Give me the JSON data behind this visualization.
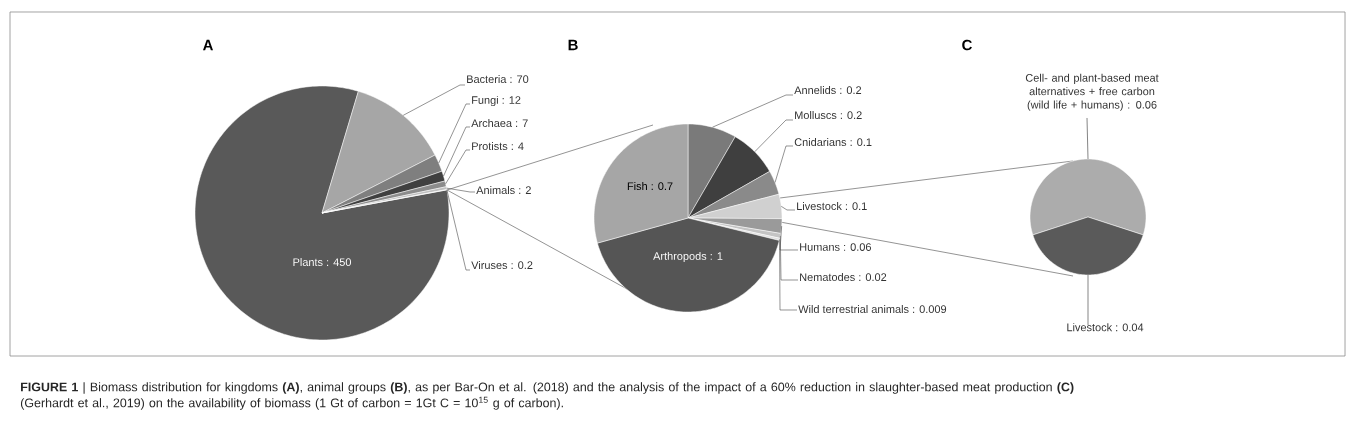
{
  "chart_data": [
    {
      "type": "pie",
      "title": "A",
      "categories": [
        "Plants",
        "Bacteria",
        "Fungi",
        "Archaea",
        "Protists",
        "Animals",
        "Viruses"
      ],
      "values": [
        450,
        70,
        12,
        7,
        4,
        2,
        0.2
      ],
      "value_labels": [
        ": 450",
        ": 70",
        ": 12",
        ": 7",
        ": 4",
        ": 2",
        ": 0.2"
      ],
      "colors": [
        "#595959",
        "#a6a6a6",
        "#7f7f7f",
        "#404040",
        "#8c8c8c",
        "#bfbfbf",
        "#d9d9d9"
      ],
      "annotations": [
        "**FIGURE 1** | Biomass distribution for kingdoms **(A)**, animal groups **(B)**, as per Bar-On et al. (2018) and the analysis of the impact of a 60% reduction in slaughter-based meat production **(C)** (Gerhardt et al., 2019) on the availability of biomass (1 Gt of carbon = 1Gt C = 10$^{15}$ g of carbon)."
      ]
    },
    {
      "type": "pie",
      "title": "B",
      "categories": [
        "Annelids",
        "Molluscs",
        "Cnidarians",
        "Livestock",
        "Humans",
        "Nematodes",
        "Wild terrestrial animals",
        "Arthropods",
        "Fish"
      ],
      "values": [
        0.2,
        0.2,
        0.1,
        0.1,
        0.06,
        0.02,
        0.009,
        1,
        0.7
      ],
      "value_labels": [
        ": 0.2",
        ": 0.2",
        ": 0.1",
        ": 0.1",
        ": 0.06",
        ": 0.02",
        ": 0.009",
        ": 1",
        ": 0.7"
      ],
      "colors": [
        "#7a7a7a",
        "#3f3f3f",
        "#8a8a8a",
        "#d0d0d0",
        "#9a9a9a",
        "#c4c4c4",
        "#e0e0e0",
        "#555555",
        "#a6a6a6"
      ]
    },
    {
      "type": "pie",
      "title": "C",
      "categories": [
        "Cell- and plant-based meat alternatives + free carbon (wild life + humans)",
        "Livestock"
      ],
      "values": [
        0.06,
        0.04
      ],
      "value_labels": [
        ": 0.06",
        ": 0.04"
      ],
      "colors": [
        "#acacac",
        "#5a5a5a"
      ]
    }
  ]
}
